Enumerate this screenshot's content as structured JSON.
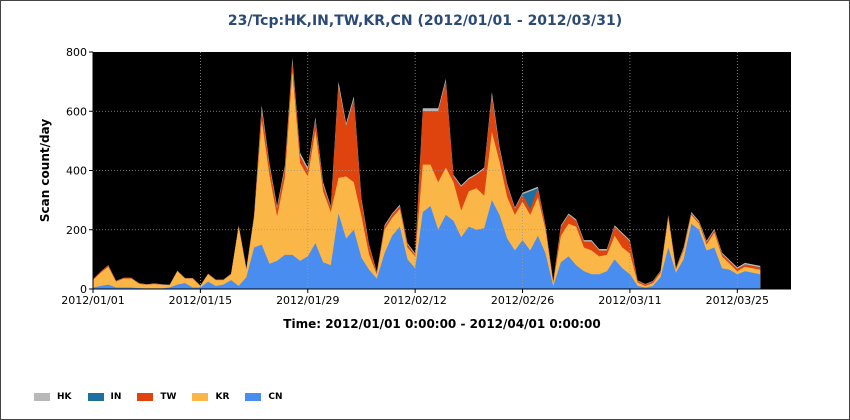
{
  "chart_data": {
    "type": "area",
    "stacked": true,
    "title": "23/Tcp:HK,IN,TW,KR,CN (2012/01/01 - 2012/03/31)",
    "xlabel": "Time: 2012/01/01 0:00:00 - 2012/04/01 0:00:00",
    "ylabel": "Scan count/day",
    "ylim": [
      0,
      800
    ],
    "yticks": [
      "0",
      "200",
      "400",
      "600",
      "800"
    ],
    "xticks": [
      {
        "label": "2012/01/01",
        "day": 0
      },
      {
        "label": "2012/01/15",
        "day": 14
      },
      {
        "label": "2012/01/29",
        "day": 28
      },
      {
        "label": "2012/02/12",
        "day": 42
      },
      {
        "label": "2012/02/26",
        "day": 56
      },
      {
        "label": "2012/03/11",
        "day": 70
      },
      {
        "label": "2012/03/25",
        "day": 84
      }
    ],
    "xrange": [
      0,
      91
    ],
    "grid": true,
    "plot_background": "#000000",
    "legend_position": "bottom-left",
    "series": [
      {
        "name": "CN",
        "color": "#4a8df0",
        "values": [
          5,
          10,
          15,
          5,
          5,
          5,
          3,
          2,
          2,
          2,
          5,
          15,
          20,
          5,
          5,
          25,
          10,
          15,
          30,
          10,
          40,
          140,
          150,
          85,
          95,
          115,
          115,
          95,
          110,
          155,
          90,
          80,
          255,
          170,
          200,
          105,
          65,
          35,
          120,
          180,
          210,
          100,
          70,
          260,
          280,
          200,
          250,
          230,
          175,
          210,
          200,
          205,
          300,
          250,
          170,
          130,
          165,
          130,
          180,
          120,
          10,
          90,
          110,
          80,
          60,
          50,
          50,
          60,
          100,
          70,
          50,
          10,
          5,
          10,
          40,
          140,
          55,
          100,
          220,
          200,
          130,
          140,
          70,
          65,
          50,
          60,
          55,
          50
        ]
      },
      {
        "name": "KR",
        "color": "#fab646",
        "values": [
          25,
          45,
          60,
          20,
          30,
          30,
          15,
          12,
          15,
          12,
          8,
          45,
          15,
          30,
          5,
          25,
          20,
          15,
          20,
          200,
          25,
          100,
          420,
          300,
          150,
          260,
          620,
          330,
          270,
          380,
          240,
          180,
          120,
          210,
          160,
          140,
          50,
          15,
          80,
          60,
          60,
          40,
          40,
          160,
          140,
          160,
          160,
          130,
          90,
          120,
          140,
          110,
          230,
          180,
          140,
          120,
          130,
          120,
          130,
          80,
          10,
          90,
          110,
          130,
          80,
          80,
          60,
          55,
          80,
          70,
          70,
          12,
          5,
          10,
          15,
          100,
          10,
          30,
          30,
          20,
          20,
          50,
          40,
          20,
          10,
          15,
          15,
          15
        ]
      },
      {
        "name": "TW",
        "color": "#e0440e",
        "values": [
          2,
          3,
          5,
          2,
          2,
          2,
          1,
          1,
          1,
          1,
          1,
          1,
          1,
          1,
          1,
          1,
          1,
          1,
          1,
          2,
          2,
          5,
          35,
          30,
          25,
          30,
          30,
          25,
          20,
          35,
          20,
          15,
          310,
          170,
          280,
          50,
          30,
          5,
          10,
          10,
          10,
          10,
          5,
          180,
          180,
          240,
          290,
          20,
          80,
          40,
          45,
          90,
          120,
          40,
          40,
          20,
          25,
          20,
          30,
          10,
          5,
          30,
          30,
          20,
          20,
          30,
          20,
          15,
          30,
          45,
          40,
          5,
          5,
          5,
          5,
          5,
          5,
          5,
          5,
          5,
          8,
          8,
          8,
          8,
          8,
          8,
          8,
          8
        ]
      },
      {
        "name": "IN",
        "color": "#1d6fa0",
        "values": [
          0,
          0,
          0,
          0,
          0,
          0,
          0,
          0,
          0,
          0,
          0,
          0,
          0,
          0,
          0,
          0,
          0,
          0,
          0,
          0,
          0,
          0,
          0,
          0,
          0,
          0,
          0,
          0,
          0,
          0,
          0,
          0,
          0,
          0,
          0,
          0,
          0,
          0,
          0,
          0,
          0,
          0,
          0,
          0,
          0,
          0,
          0,
          0,
          0,
          0,
          0,
          0,
          0,
          0,
          0,
          0,
          0,
          60,
          0,
          0,
          0,
          0,
          0,
          0,
          0,
          0,
          0,
          0,
          0,
          0,
          0,
          0,
          0,
          0,
          0,
          0,
          0,
          0,
          0,
          0,
          0,
          0,
          0,
          0,
          0,
          0,
          0,
          0
        ]
      },
      {
        "name": "HK",
        "color": "#b8b8b8",
        "values": [
          1,
          1,
          1,
          1,
          1,
          1,
          1,
          1,
          1,
          1,
          1,
          1,
          1,
          1,
          1,
          1,
          1,
          1,
          1,
          3,
          3,
          5,
          15,
          10,
          10,
          10,
          15,
          10,
          10,
          10,
          10,
          5,
          15,
          10,
          10,
          10,
          5,
          3,
          5,
          5,
          5,
          5,
          5,
          10,
          10,
          10,
          10,
          5,
          5,
          5,
          5,
          5,
          15,
          10,
          5,
          5,
          5,
          5,
          5,
          5,
          2,
          5,
          5,
          5,
          5,
          5,
          5,
          5,
          5,
          5,
          5,
          2,
          2,
          2,
          2,
          5,
          2,
          5,
          5,
          5,
          5,
          5,
          5,
          5,
          5,
          5,
          5,
          5
        ]
      }
    ]
  }
}
